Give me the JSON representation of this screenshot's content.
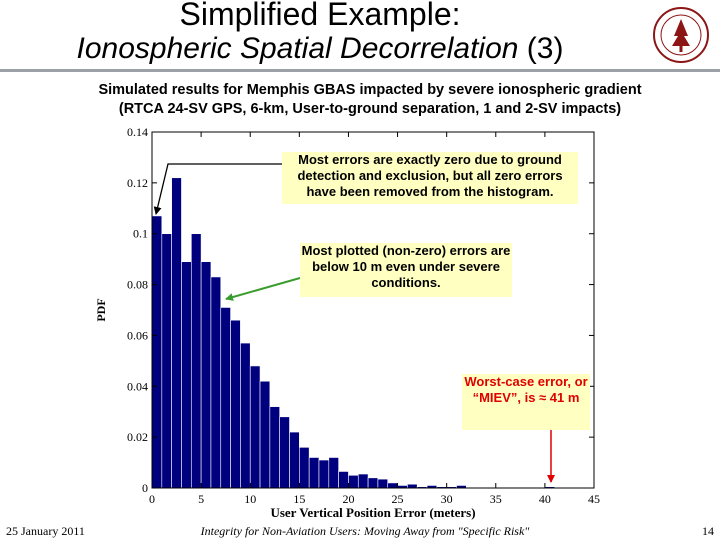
{
  "slide": {
    "title_line1": "Simplified Example:",
    "title_line2_italic": "Ionospheric Spatial Decorrelation",
    "title_line2_suffix": " (3)",
    "subtitle_line1": "Simulated results for Memphis GBAS impacted by severe ionospheric gradient",
    "subtitle_line2": "(RTCA 24-SV GPS, 6-km, User-to-ground separation, 1 and 2-SV impacts)",
    "footer_date": "25 January 2011",
    "footer_title": "Integrity for Non-Aviation Users: Moving Away from \"Specific Risk\"",
    "page_number": "14",
    "logo_icon": "stanford-seal-icon"
  },
  "annotations": {
    "zero_errors": "Most errors are exactly zero due to ground detection and exclusion, but all zero errors have been removed from the histogram.",
    "below_10m": "Most plotted (non-zero) errors are below 10 m even under severe conditions.",
    "worst_case": "Worst-case error, or “MIEV”, is ≈ 41 m"
  },
  "colors": {
    "bar_fill": "#00007f",
    "annotation_bg": "#ffffc2",
    "red_text": "#e00000",
    "green_arrow": "#3a9c2e",
    "logo": "#8c1515"
  },
  "chart_data": {
    "type": "bar",
    "xlabel": "User Vertical Position Error (meters)",
    "ylabel": "PDF",
    "xlim": [
      0,
      45
    ],
    "ylim": [
      0,
      0.14
    ],
    "xticks": [
      "0",
      "5",
      "10",
      "15",
      "20",
      "25",
      "30",
      "35",
      "40",
      "45"
    ],
    "yticks": [
      "0",
      "0.02",
      "0.04",
      "0.06",
      "0.08",
      "0.1",
      "0.12",
      "0.14"
    ],
    "bin_width": 1,
    "grid": false,
    "x": [
      0.5,
      1.5,
      2.5,
      3.5,
      4.5,
      5.5,
      6.5,
      7.5,
      8.5,
      9.5,
      10.5,
      11.5,
      12.5,
      13.5,
      14.5,
      15.5,
      16.5,
      17.5,
      18.5,
      19.5,
      20.5,
      21.5,
      22.5,
      23.5,
      24.5,
      25.5,
      26.5,
      27.5,
      28.5,
      29.5,
      30.5,
      31.5,
      32.5,
      33.5,
      34.5,
      35.5,
      36.5,
      37.5,
      38.5,
      39.5,
      40.5
    ],
    "values": [
      0.107,
      0.1,
      0.122,
      0.089,
      0.1,
      0.089,
      0.083,
      0.071,
      0.066,
      0.057,
      0.048,
      0.042,
      0.032,
      0.028,
      0.022,
      0.016,
      0.012,
      0.011,
      0.012,
      0.0065,
      0.005,
      0.0055,
      0.004,
      0.0035,
      0.002,
      0.001,
      0.0015,
      0.0005,
      0.001,
      0.0005,
      0.0005,
      0.001,
      0.0003,
      0.0003,
      0.0003,
      0.0003,
      0.0002,
      0.0002,
      0.0002,
      0.0002,
      0.0005
    ]
  }
}
